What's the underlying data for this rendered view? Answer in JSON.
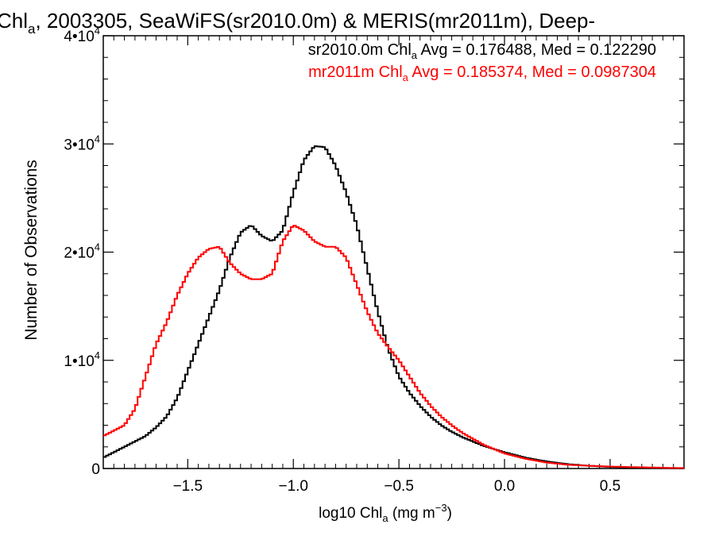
{
  "chart_data": {
    "type": "line",
    "title": {
      "prefix": "Chl",
      "sub": "a",
      "rest": ", 2003305, SeaWiFS(sr2010.0m) & MERIS(mr2011m), Deep-"
    },
    "xlabel": {
      "prefix": "log10 Chl",
      "sub": "a",
      "mid": " (mg m",
      "sup": "−3",
      "end": ")"
    },
    "ylabel": "Number of Observations",
    "xlim": [
      -1.9,
      0.85
    ],
    "ylim": [
      0,
      40000
    ],
    "x_ticks": [
      {
        "value": -1.5,
        "label": "−1.5"
      },
      {
        "value": -1.0,
        "label": "−1.0"
      },
      {
        "value": -0.5,
        "label": "−0.5"
      },
      {
        "value": 0.0,
        "label": "0.0"
      },
      {
        "value": 0.5,
        "label": "0.5"
      }
    ],
    "y_ticks": [
      {
        "value": 0,
        "mant": "0",
        "exp": ""
      },
      {
        "value": 10000,
        "mant": "1•10",
        "exp": "4"
      },
      {
        "value": 20000,
        "mant": "2•10",
        "exp": "4"
      },
      {
        "value": 30000,
        "mant": "3•10",
        "exp": "4"
      },
      {
        "value": 40000,
        "mant": "4•10",
        "exp": "4"
      }
    ],
    "grid": false,
    "legend_position": "top-right",
    "series": [
      {
        "color": "#000000",
        "legend": {
          "pre": "sr2010.0m Chl",
          "sub": "a",
          "post": " Avg = 0.176488, Med = 0.122290"
        },
        "x": [
          -1.9,
          -1.85,
          -1.8,
          -1.75,
          -1.7,
          -1.65,
          -1.6,
          -1.55,
          -1.5,
          -1.45,
          -1.4,
          -1.35,
          -1.3,
          -1.25,
          -1.2,
          -1.15,
          -1.1,
          -1.05,
          -1.0,
          -0.95,
          -0.9,
          -0.85,
          -0.8,
          -0.75,
          -0.7,
          -0.65,
          -0.6,
          -0.55,
          -0.5,
          -0.45,
          -0.4,
          -0.35,
          -0.3,
          -0.25,
          -0.2,
          -0.1,
          0.0,
          0.1,
          0.2,
          0.3,
          0.4,
          0.5,
          0.6,
          0.7,
          0.8,
          0.85
        ],
        "y": [
          1000,
          1500,
          2000,
          2500,
          3000,
          3800,
          4800,
          6500,
          9000,
          11500,
          14000,
          16500,
          19500,
          21800,
          22500,
          21500,
          21000,
          22000,
          25500,
          28500,
          29800,
          29700,
          28000,
          25500,
          22500,
          18500,
          14500,
          11000,
          8500,
          7000,
          5800,
          4800,
          4000,
          3400,
          2900,
          2100,
          1500,
          1000,
          650,
          400,
          250,
          150,
          90,
          50,
          30,
          20
        ]
      },
      {
        "color": "#ff0000",
        "legend": {
          "pre": "mr2011m Chl",
          "sub": "a",
          "post": " Avg = 0.185374, Med = 0.0987304"
        },
        "x": [
          -1.9,
          -1.85,
          -1.8,
          -1.75,
          -1.7,
          -1.65,
          -1.6,
          -1.55,
          -1.5,
          -1.45,
          -1.4,
          -1.35,
          -1.3,
          -1.25,
          -1.2,
          -1.15,
          -1.1,
          -1.05,
          -1.0,
          -0.95,
          -0.9,
          -0.85,
          -0.8,
          -0.75,
          -0.7,
          -0.65,
          -0.6,
          -0.55,
          -0.5,
          -0.45,
          -0.4,
          -0.35,
          -0.3,
          -0.25,
          -0.2,
          -0.1,
          0.0,
          0.1,
          0.2,
          0.3,
          0.4,
          0.5,
          0.6,
          0.7,
          0.8,
          0.85
        ],
        "y": [
          3000,
          3500,
          4000,
          5500,
          8500,
          11500,
          13500,
          16000,
          18000,
          19500,
          20300,
          20500,
          19000,
          18000,
          17500,
          17500,
          18000,
          21000,
          22500,
          22000,
          21000,
          20500,
          20500,
          19500,
          17000,
          14500,
          12500,
          11200,
          10000,
          8500,
          7000,
          5800,
          4800,
          4000,
          3300,
          2200,
          1400,
          900,
          550,
          350,
          250,
          180,
          130,
          90,
          50,
          40
        ]
      }
    ]
  }
}
